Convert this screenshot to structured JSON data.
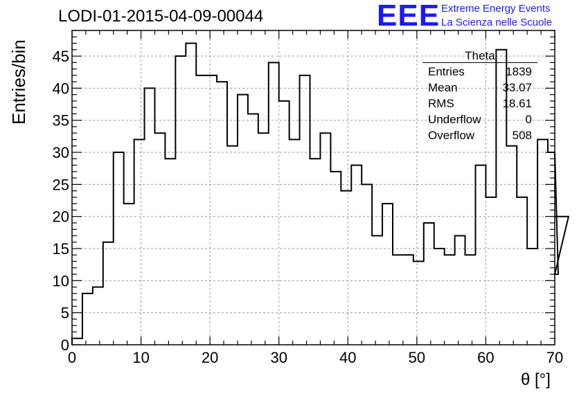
{
  "title": "LODI-01-2015-04-09-00044",
  "logo": {
    "mark": "EEE",
    "line1": "Extreme Energy Events",
    "line2": "La Scienza nelle Scuole",
    "color": "#1a1aff"
  },
  "stats": {
    "title": "Theta",
    "rows": [
      {
        "label": "Entries",
        "value": "1839"
      },
      {
        "label": "Mean",
        "value": "33.07"
      },
      {
        "label": "RMS",
        "value": "18.61"
      },
      {
        "label": "Underflow",
        "value": "0"
      },
      {
        "label": "Overflow",
        "value": "508"
      }
    ]
  },
  "chart_data": {
    "type": "bar",
    "style": "step-histogram",
    "xlabel": "θ [°]",
    "ylabel": "Entries/bin",
    "xlim": [
      0,
      70
    ],
    "ylim": [
      0,
      49
    ],
    "grid": true,
    "bin_width": 1.5,
    "x_ticks": [
      0,
      10,
      20,
      30,
      40,
      50,
      60,
      70
    ],
    "y_ticks": [
      0,
      5,
      10,
      15,
      20,
      25,
      30,
      35,
      40,
      45
    ],
    "values": [
      1,
      8,
      9,
      16,
      30,
      22,
      32,
      40,
      33,
      29,
      45,
      47,
      42,
      42,
      41,
      31,
      39,
      36,
      33,
      44,
      38,
      32,
      42,
      29,
      33,
      27,
      24,
      28,
      25,
      17,
      22,
      14,
      14,
      13,
      19,
      15,
      14,
      17,
      14,
      28,
      23,
      46,
      31,
      23,
      15,
      32,
      30,
      11,
      20
    ]
  }
}
